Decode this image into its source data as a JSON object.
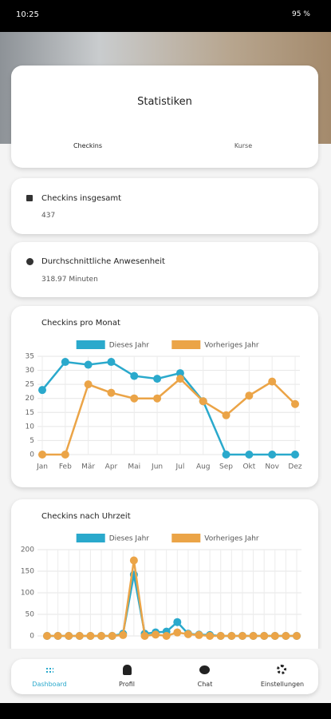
{
  "status_bar": {
    "time": "10:25",
    "battery": "95 %"
  },
  "header": {
    "title": "Statistiken",
    "tabs": [
      "Checkins",
      "Kurse"
    ]
  },
  "cards": [
    {
      "title": "Checkins insgesamt",
      "value": "437"
    },
    {
      "title": "Durchschnittliche Anwesenheit",
      "value": "318.97 Minuten"
    }
  ],
  "chart_data": [
    {
      "type": "line",
      "title": "Checkins pro Monat",
      "categories": [
        "Jan",
        "Feb",
        "Mär",
        "Apr",
        "Mai",
        "Jun",
        "Jul",
        "Aug",
        "Sep",
        "Okt",
        "Nov",
        "Dez"
      ],
      "series": [
        {
          "name": "Dieses Jahr",
          "color": "#2aa9cc",
          "values": [
            23,
            33,
            32,
            33,
            28,
            27,
            29,
            19,
            0,
            0,
            0,
            0
          ]
        },
        {
          "name": "Vorheriges Jahr",
          "color": "#eba447",
          "values": [
            0,
            0,
            25,
            22,
            20,
            20,
            27,
            19,
            14,
            21,
            26,
            18
          ]
        }
      ],
      "ylim": [
        0,
        35
      ],
      "yticks": [
        0,
        5,
        10,
        15,
        20,
        25,
        30,
        35
      ],
      "grid": true
    },
    {
      "type": "line",
      "title": "Checkins nach Uhrzeit",
      "categories": [
        null,
        null,
        null,
        null,
        null,
        null,
        null,
        null,
        null,
        null,
        null,
        null,
        null,
        null,
        null,
        null,
        null,
        null,
        null,
        null,
        null,
        null,
        null,
        null
      ],
      "series": [
        {
          "name": "Dieses Jahr",
          "color": "#2aa9cc",
          "values": [
            0,
            0,
            0,
            0,
            0,
            0,
            0,
            5,
            142,
            5,
            8,
            10,
            32,
            5,
            3,
            2,
            0,
            0,
            0,
            0,
            0,
            0,
            0,
            0
          ]
        },
        {
          "name": "Vorheriges Jahr",
          "color": "#eba447",
          "values": [
            0,
            0,
            0,
            0,
            0,
            0,
            0,
            2,
            175,
            0,
            3,
            0,
            8,
            4,
            2,
            0,
            0,
            0,
            0,
            0,
            0,
            0,
            0,
            0
          ]
        }
      ],
      "ylim": [
        0,
        200
      ],
      "yticks": [
        0,
        50,
        100,
        150,
        200
      ],
      "grid": true
    }
  ],
  "nav": [
    "Dashboard",
    "Profil",
    "Chat",
    "Einstellungen"
  ]
}
